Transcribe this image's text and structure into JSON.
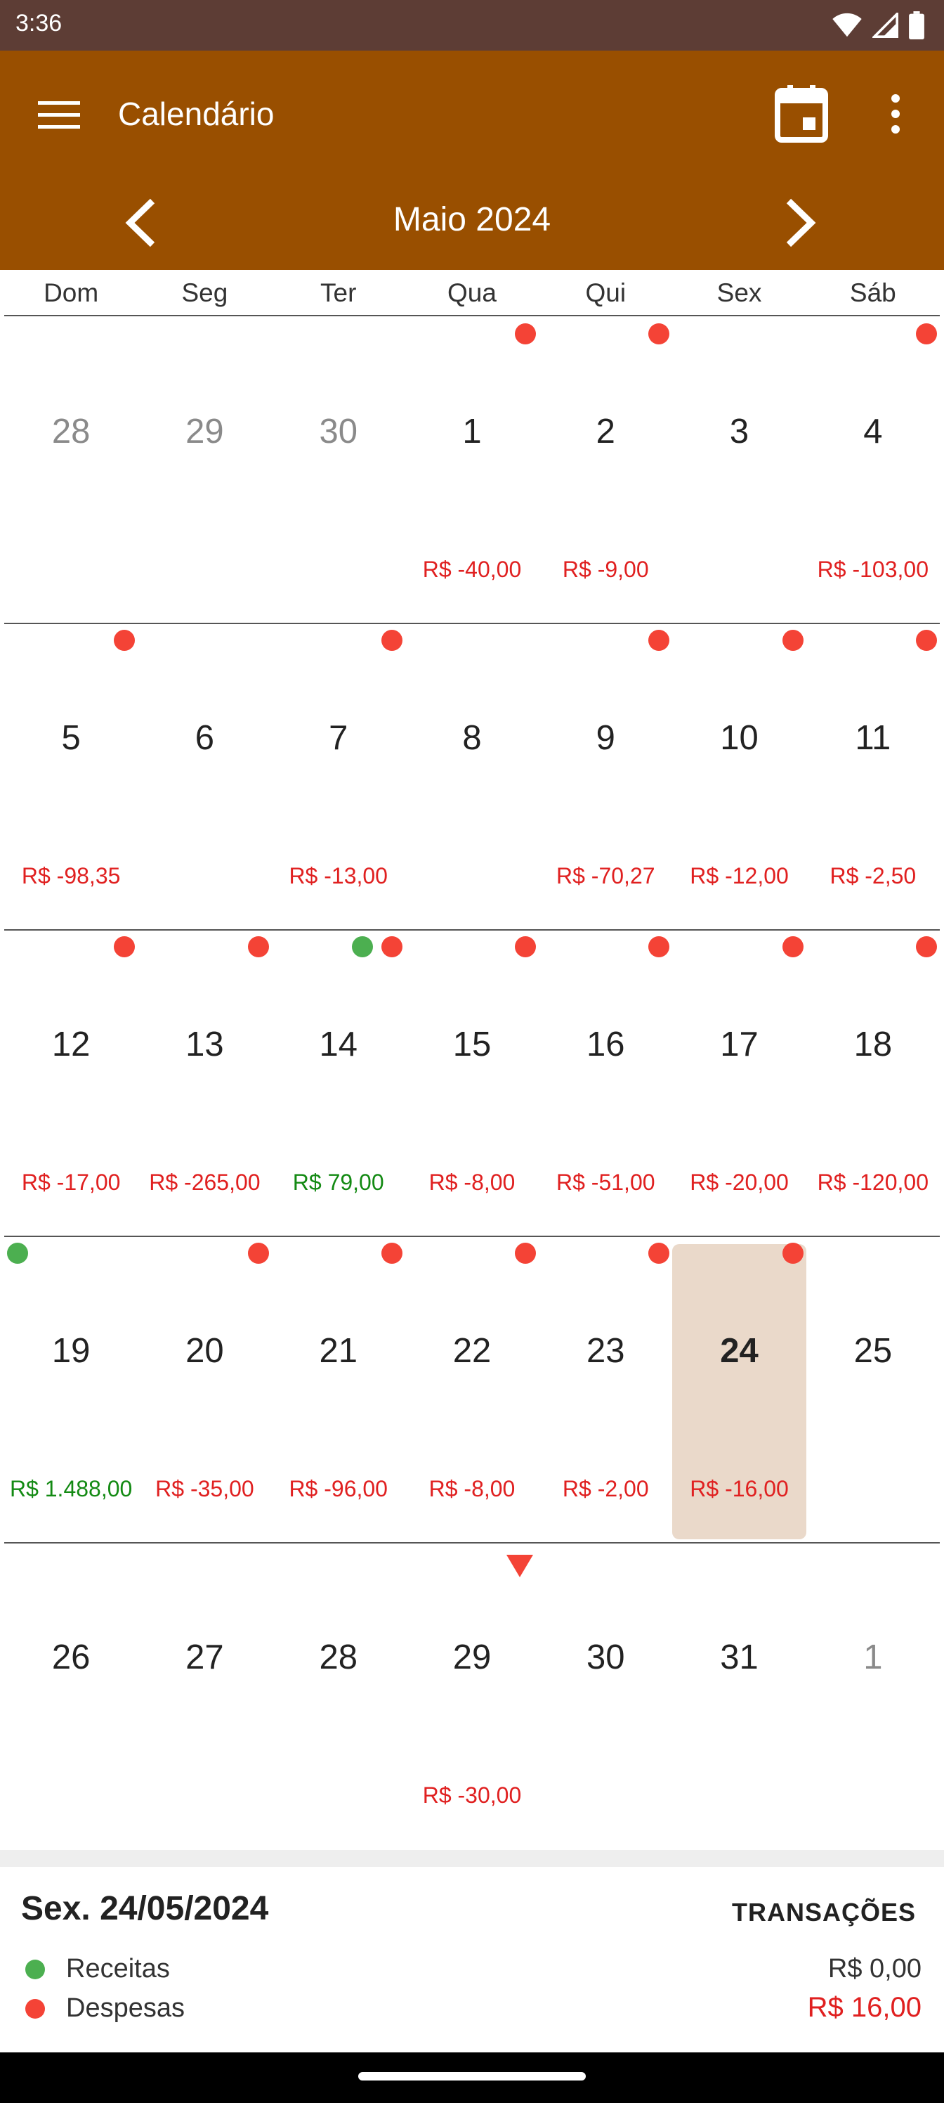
{
  "status_bar": {
    "time": "3:36"
  },
  "app_bar": {
    "title": "Calendário",
    "month": "Maio 2024"
  },
  "weekdays": [
    "Dom",
    "Seg",
    "Ter",
    "Qua",
    "Qui",
    "Sex",
    "Sáb"
  ],
  "weeks": [
    {
      "days": [
        {
          "num": "28",
          "other": true
        },
        {
          "num": "29",
          "other": true
        },
        {
          "num": "30",
          "other": true
        },
        {
          "num": "1",
          "amount": "R$ -40,00",
          "dots": [
            "red"
          ]
        },
        {
          "num": "2",
          "amount": "R$ -9,00",
          "dots": [
            "red"
          ]
        },
        {
          "num": "3"
        },
        {
          "num": "4",
          "amount": "R$ -103,00",
          "dots": [
            "red"
          ]
        }
      ]
    },
    {
      "days": [
        {
          "num": "5",
          "amount": "R$ -98,35",
          "dots": [
            "red"
          ]
        },
        {
          "num": "6"
        },
        {
          "num": "7",
          "amount": "R$ -13,00",
          "dots": [
            "red"
          ]
        },
        {
          "num": "8"
        },
        {
          "num": "9",
          "amount": "R$ -70,27",
          "dots": [
            "red"
          ]
        },
        {
          "num": "10",
          "amount": "R$ -12,00",
          "dots": [
            "red"
          ]
        },
        {
          "num": "11",
          "amount": "R$ -2,50",
          "dots": [
            "red"
          ]
        }
      ]
    },
    {
      "days": [
        {
          "num": "12",
          "amount": "R$ -17,00",
          "dots": [
            "red"
          ]
        },
        {
          "num": "13",
          "amount": "R$ -265,00",
          "dots": [
            "red"
          ]
        },
        {
          "num": "14",
          "amount": "R$ 79,00",
          "positive": true,
          "dots": [
            "green",
            "red"
          ]
        },
        {
          "num": "15",
          "amount": "R$ -8,00",
          "dots": [
            "red"
          ]
        },
        {
          "num": "16",
          "amount": "R$ -51,00",
          "dots": [
            "red"
          ]
        },
        {
          "num": "17",
          "amount": "R$ -20,00",
          "dots": [
            "red"
          ]
        },
        {
          "num": "18",
          "amount": "R$ -120,00",
          "dots": [
            "red"
          ]
        }
      ]
    },
    {
      "days": [
        {
          "num": "19",
          "amount": "R$ 1.488,00",
          "positive": true,
          "dots": [
            "green"
          ]
        },
        {
          "num": "20",
          "amount": "R$ -35,00",
          "dots": [
            "red"
          ]
        },
        {
          "num": "21",
          "amount": "R$ -96,00",
          "dots": [
            "red"
          ]
        },
        {
          "num": "22",
          "amount": "R$ -8,00",
          "dots": [
            "red"
          ]
        },
        {
          "num": "23",
          "amount": "R$ -2,00",
          "dots": [
            "red"
          ]
        },
        {
          "num": "24",
          "amount": "R$ -16,00",
          "dots": [
            "red"
          ],
          "selected": true
        },
        {
          "num": "25"
        }
      ]
    },
    {
      "days": [
        {
          "num": "26"
        },
        {
          "num": "27"
        },
        {
          "num": "28"
        },
        {
          "num": "29",
          "amount": "R$ -30,00",
          "scheduled": true
        },
        {
          "num": "30"
        },
        {
          "num": "31"
        },
        {
          "num": "1",
          "other": true
        }
      ]
    }
  ],
  "footer": {
    "date": "Sex. 24/05/2024",
    "transactions_label": "TRANSAÇÕES",
    "income_label": "Receitas",
    "income_value": "R$ 0,00",
    "expense_label": "Despesas",
    "expense_value": "R$ 16,00"
  },
  "colors": {
    "app_bar": "#994f00",
    "status_bar": "#5d3d35",
    "expense": "#e02020",
    "income": "#138a13",
    "selected_bg": "#ead9ca"
  }
}
